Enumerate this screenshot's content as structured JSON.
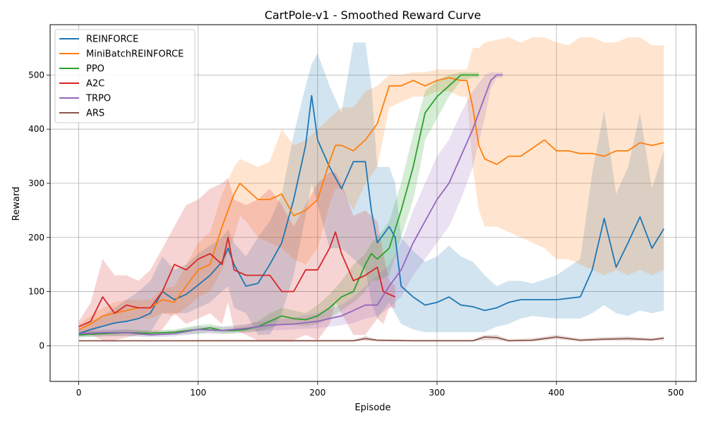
{
  "chart_data": {
    "type": "line",
    "title": "CartPole-v1 - Smoothed Reward Curve",
    "xlabel": "Episode",
    "ylabel": "Reward",
    "xlim": [
      -24,
      517
    ],
    "ylim": [
      -66,
      593
    ],
    "xticks": [
      0,
      100,
      200,
      300,
      400,
      500
    ],
    "yticks": [
      0,
      100,
      200,
      300,
      400,
      500
    ],
    "grid": true,
    "legend": "top-left",
    "series": [
      {
        "name": "REINFORCE",
        "color": "#1f77b4",
        "x": [
          0,
          10,
          20,
          30,
          40,
          50,
          60,
          70,
          80,
          90,
          100,
          110,
          120,
          125,
          130,
          140,
          150,
          160,
          170,
          180,
          190,
          195,
          200,
          210,
          220,
          230,
          240,
          245,
          250,
          260,
          265,
          270,
          280,
          290,
          300,
          310,
          320,
          330,
          340,
          350,
          360,
          370,
          380,
          400,
          420,
          430,
          440,
          450,
          460,
          470,
          480,
          490
        ],
        "y": [
          22,
          30,
          36,
          42,
          45,
          50,
          60,
          100,
          85,
          95,
          112,
          130,
          155,
          180,
          150,
          110,
          115,
          150,
          190,
          270,
          370,
          462,
          380,
          330,
          290,
          340,
          340,
          250,
          190,
          220,
          200,
          110,
          90,
          75,
          80,
          90,
          75,
          72,
          65,
          70,
          80,
          85,
          85,
          85,
          90,
          140,
          235,
          145,
          190,
          238,
          180,
          216
        ],
        "band_upper": [
          30,
          45,
          55,
          70,
          85,
          100,
          120,
          165,
          140,
          150,
          170,
          185,
          200,
          215,
          190,
          165,
          200,
          230,
          280,
          390,
          480,
          520,
          540,
          480,
          430,
          560,
          560,
          480,
          330,
          330,
          300,
          200,
          175,
          155,
          165,
          185,
          165,
          155,
          130,
          110,
          120,
          120,
          115,
          130,
          160,
          320,
          435,
          280,
          330,
          430,
          290,
          360
        ],
        "band_lower": [
          18,
          20,
          22,
          25,
          25,
          20,
          25,
          60,
          60,
          60,
          70,
          80,
          100,
          110,
          70,
          60,
          20,
          20,
          60,
          130,
          240,
          300,
          260,
          180,
          180,
          160,
          140,
          80,
          50,
          80,
          60,
          40,
          30,
          25,
          25,
          25,
          25,
          25,
          25,
          35,
          40,
          50,
          55,
          50,
          50,
          60,
          75,
          60,
          55,
          65,
          60,
          65
        ]
      },
      {
        "name": "MiniBatchREINFORCE",
        "color": "#ff7f0e",
        "x": [
          0,
          10,
          20,
          30,
          40,
          50,
          60,
          70,
          80,
          90,
          100,
          110,
          120,
          130,
          135,
          140,
          150,
          160,
          170,
          180,
          190,
          200,
          210,
          215,
          220,
          230,
          240,
          250,
          260,
          270,
          280,
          290,
          300,
          310,
          320,
          325,
          330,
          335,
          340,
          350,
          360,
          370,
          380,
          390,
          400,
          410,
          420,
          430,
          440,
          450,
          460,
          470,
          480,
          490
        ],
        "y": [
          30,
          40,
          55,
          60,
          65,
          70,
          70,
          85,
          80,
          110,
          140,
          150,
          220,
          280,
          300,
          290,
          270,
          270,
          280,
          240,
          250,
          270,
          340,
          370,
          370,
          360,
          380,
          410,
          480,
          480,
          490,
          480,
          490,
          495,
          490,
          490,
          440,
          370,
          345,
          335,
          350,
          350,
          365,
          380,
          360,
          360,
          355,
          355,
          350,
          360,
          360,
          375,
          370,
          375
        ],
        "band_upper": [
          40,
          55,
          70,
          80,
          85,
          85,
          85,
          105,
          110,
          150,
          190,
          210,
          280,
          330,
          345,
          340,
          330,
          340,
          400,
          370,
          380,
          400,
          420,
          430,
          440,
          440,
          470,
          480,
          500,
          500,
          505,
          505,
          510,
          510,
          510,
          510,
          550,
          550,
          560,
          565,
          570,
          560,
          570,
          570,
          560,
          555,
          570,
          570,
          560,
          560,
          570,
          570,
          555,
          555
        ],
        "band_lower": [
          20,
          25,
          35,
          40,
          45,
          50,
          50,
          60,
          55,
          70,
          90,
          100,
          140,
          200,
          240,
          230,
          200,
          190,
          180,
          160,
          150,
          180,
          260,
          290,
          290,
          250,
          300,
          330,
          440,
          450,
          460,
          460,
          470,
          470,
          460,
          460,
          330,
          250,
          220,
          220,
          210,
          200,
          190,
          180,
          160,
          160,
          150,
          140,
          130,
          140,
          130,
          140,
          130,
          140
        ]
      },
      {
        "name": "PPO",
        "color": "#2ca02c",
        "x": [
          0,
          20,
          40,
          60,
          80,
          100,
          110,
          120,
          130,
          140,
          150,
          160,
          170,
          180,
          190,
          200,
          210,
          220,
          230,
          240,
          245,
          250,
          260,
          270,
          280,
          285,
          290,
          300,
          310,
          320,
          330,
          335
        ],
        "y": [
          20,
          22,
          24,
          23,
          25,
          30,
          33,
          28,
          28,
          30,
          35,
          45,
          55,
          50,
          48,
          55,
          70,
          90,
          100,
          150,
          170,
          160,
          180,
          250,
          330,
          380,
          430,
          460,
          480,
          500,
          500,
          500
        ],
        "band_upper": [
          25,
          27,
          30,
          28,
          30,
          38,
          40,
          35,
          35,
          38,
          45,
          60,
          70,
          65,
          60,
          75,
          95,
          120,
          150,
          170,
          190,
          200,
          230,
          300,
          390,
          430,
          470,
          490,
          500,
          505,
          505,
          505
        ],
        "band_lower": [
          15,
          17,
          18,
          18,
          20,
          22,
          25,
          22,
          22,
          24,
          27,
          32,
          40,
          38,
          36,
          40,
          50,
          65,
          80,
          100,
          120,
          120,
          130,
          200,
          270,
          320,
          380,
          420,
          460,
          490,
          495,
          495
        ]
      },
      {
        "name": "A2C",
        "color": "#d62728",
        "x": [
          0,
          10,
          20,
          30,
          40,
          50,
          60,
          70,
          80,
          90,
          100,
          110,
          120,
          125,
          130,
          140,
          150,
          160,
          170,
          180,
          190,
          200,
          210,
          215,
          220,
          230,
          240,
          250,
          255,
          260,
          265
        ],
        "y": [
          35,
          45,
          90,
          60,
          75,
          70,
          70,
          100,
          150,
          140,
          160,
          170,
          150,
          200,
          140,
          130,
          130,
          130,
          100,
          100,
          140,
          140,
          180,
          210,
          170,
          120,
          130,
          145,
          100,
          95,
          90
        ],
        "band_upper": [
          45,
          80,
          160,
          130,
          130,
          120,
          140,
          180,
          220,
          260,
          270,
          290,
          300,
          310,
          270,
          260,
          270,
          290,
          260,
          220,
          260,
          300,
          320,
          320,
          300,
          240,
          250,
          230,
          170,
          120,
          110
        ],
        "band_lower": [
          25,
          20,
          10,
          10,
          15,
          20,
          20,
          30,
          60,
          40,
          50,
          60,
          40,
          80,
          30,
          20,
          10,
          10,
          10,
          10,
          20,
          10,
          40,
          80,
          60,
          20,
          20,
          50,
          40,
          70,
          70
        ]
      },
      {
        "name": "TRPO",
        "color": "#9467bd",
        "x": [
          0,
          20,
          40,
          60,
          80,
          100,
          120,
          140,
          160,
          180,
          200,
          210,
          220,
          230,
          240,
          250,
          260,
          270,
          280,
          290,
          300,
          310,
          320,
          330,
          340,
          345,
          350,
          355
        ],
        "y": [
          22,
          24,
          24,
          20,
          22,
          30,
          28,
          32,
          38,
          40,
          45,
          50,
          55,
          65,
          75,
          75,
          110,
          140,
          190,
          230,
          270,
          300,
          350,
          400,
          460,
          490,
          500,
          500
        ],
        "band_upper": [
          28,
          30,
          30,
          26,
          28,
          36,
          35,
          40,
          48,
          52,
          60,
          68,
          75,
          90,
          110,
          130,
          150,
          190,
          250,
          300,
          350,
          380,
          430,
          470,
          500,
          505,
          505,
          505
        ],
        "band_lower": [
          16,
          18,
          18,
          15,
          17,
          22,
          22,
          25,
          28,
          30,
          32,
          35,
          38,
          42,
          50,
          55,
          70,
          90,
          130,
          160,
          190,
          220,
          270,
          330,
          420,
          475,
          495,
          495
        ]
      },
      {
        "name": "ARS",
        "color": "#8c564b",
        "x": [
          0,
          40,
          80,
          120,
          160,
          200,
          230,
          240,
          250,
          280,
          320,
          330,
          340,
          350,
          360,
          380,
          400,
          420,
          440,
          460,
          480,
          490
        ],
        "y": [
          9,
          9,
          9,
          9,
          9,
          9,
          9,
          13,
          10,
          9,
          9,
          9,
          16,
          15,
          9,
          10,
          16,
          10,
          12,
          13,
          11,
          14
        ],
        "band_upper": [
          10,
          10,
          10,
          11,
          11,
          11,
          11,
          18,
          12,
          11,
          11,
          11,
          20,
          20,
          12,
          14,
          20,
          13,
          16,
          17,
          14,
          17
        ],
        "band_lower": [
          8,
          8,
          8,
          8,
          8,
          8,
          8,
          9,
          8,
          8,
          8,
          8,
          10,
          10,
          8,
          8,
          12,
          8,
          9,
          9,
          9,
          10
        ]
      }
    ]
  }
}
